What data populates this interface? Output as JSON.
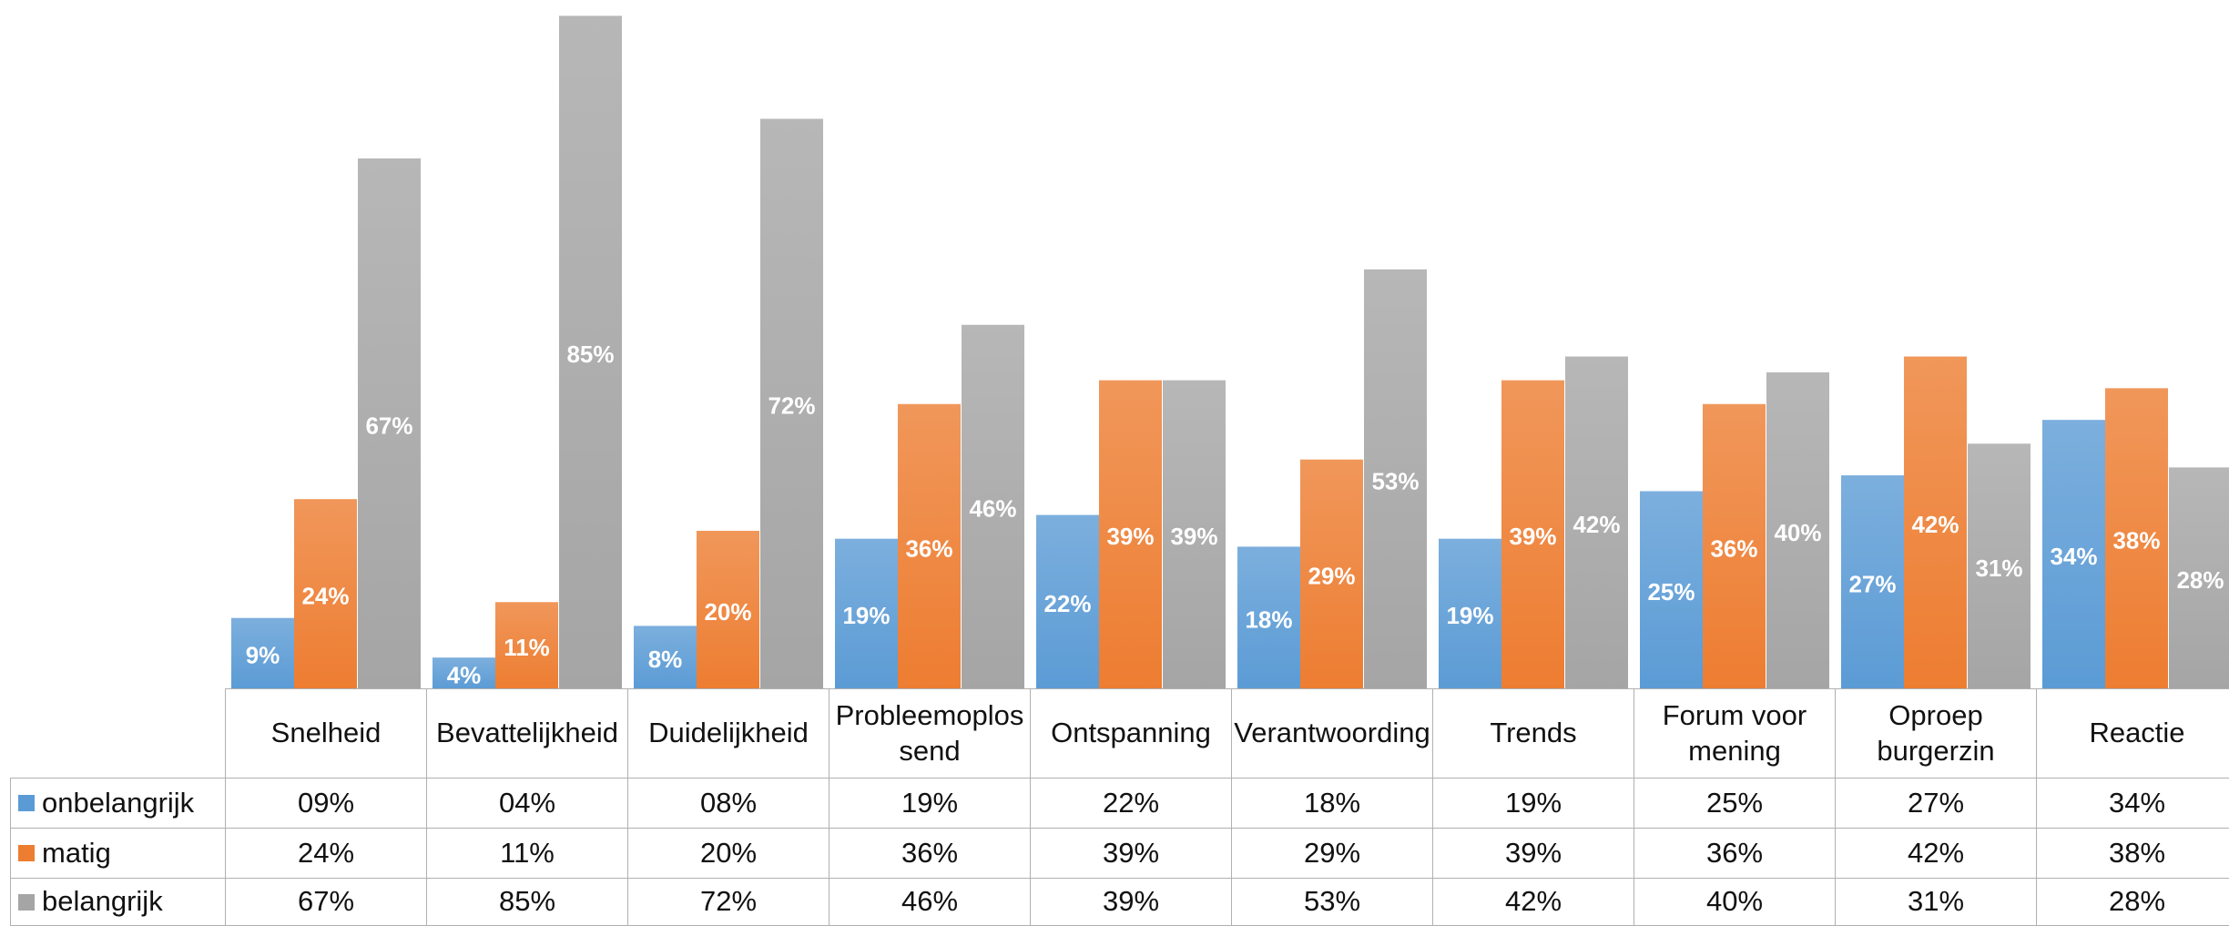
{
  "chart_data": {
    "type": "bar",
    "categories": [
      "Snelheid",
      "Bevattelijkheid",
      "Duidelijkheid",
      "Probleemoplossend",
      "Ontspanning",
      "Verantwoording",
      "Trends",
      "Forum voor mening",
      "Oproep burgerzin",
      "Reactie"
    ],
    "series": [
      {
        "name": "onbelangrijk",
        "color": "#5b9bd5",
        "values": [
          9,
          4,
          8,
          19,
          22,
          18,
          19,
          25,
          27,
          34
        ],
        "value_labels": [
          "9%",
          "4%",
          "8%",
          "19%",
          "22%",
          "18%",
          "19%",
          "25%",
          "27%",
          "34%"
        ],
        "table_labels": [
          "09%",
          "04%",
          "08%",
          "19%",
          "22%",
          "18%",
          "19%",
          "25%",
          "27%",
          "34%"
        ]
      },
      {
        "name": "matig",
        "color": "#ed7d31",
        "values": [
          24,
          11,
          20,
          36,
          39,
          29,
          39,
          36,
          42,
          38
        ],
        "value_labels": [
          "24%",
          "11%",
          "20%",
          "36%",
          "39%",
          "29%",
          "39%",
          "36%",
          "42%",
          "38%"
        ],
        "table_labels": [
          "24%",
          "11%",
          "20%",
          "36%",
          "39%",
          "29%",
          "39%",
          "36%",
          "42%",
          "38%"
        ]
      },
      {
        "name": "belangrijk",
        "color": "#a5a5a5",
        "values": [
          67,
          85,
          72,
          46,
          39,
          53,
          42,
          40,
          31,
          28
        ],
        "value_labels": [
          "67%",
          "85%",
          "72%",
          "46%",
          "39%",
          "53%",
          "42%",
          "40%",
          "31%",
          "28%"
        ],
        "table_labels": [
          "67%",
          "85%",
          "72%",
          "46%",
          "39%",
          "53%",
          "42%",
          "40%",
          "31%",
          "28%"
        ]
      }
    ],
    "ylim": [
      0,
      87
    ]
  }
}
